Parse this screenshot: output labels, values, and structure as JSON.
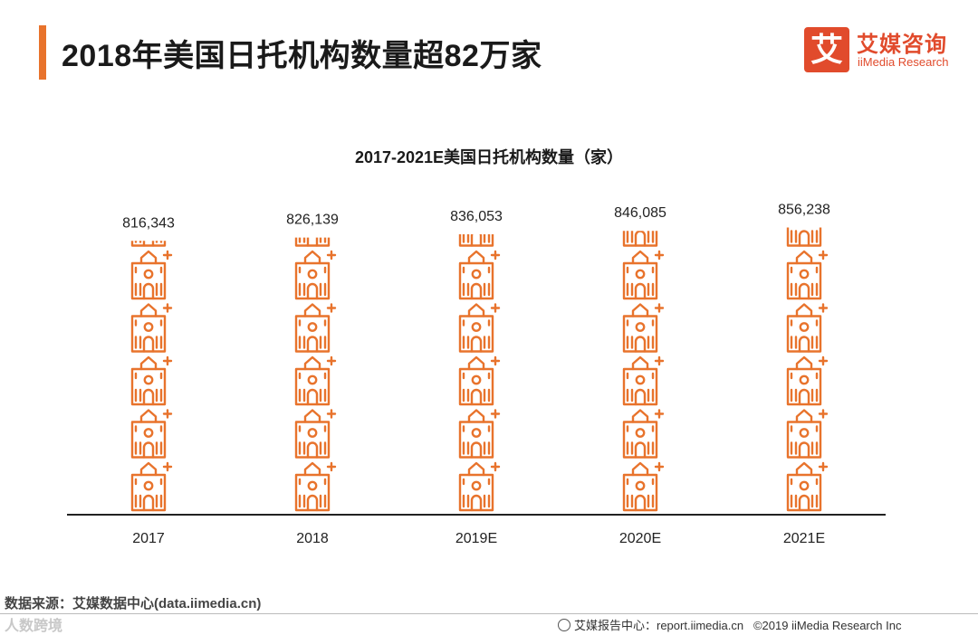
{
  "page": {
    "title": "2018年美国日托机构数量超82万家",
    "accent_color": "#e8732c"
  },
  "logo": {
    "mark": "艾",
    "cn": "艾媒咨询",
    "en": "iiMedia Research",
    "color": "#e14b2c"
  },
  "chart_data": {
    "type": "bar",
    "title": "2017-2021E美国日托机构数量（家）",
    "categories": [
      "2017",
      "2018",
      "2019E",
      "2020E",
      "2021E"
    ],
    "values": [
      816343,
      826139,
      836053,
      846085,
      856238
    ],
    "value_labels": [
      "816,343",
      "826,139",
      "836,053",
      "846,085",
      "856,238"
    ],
    "ylabel": "",
    "xlabel": "",
    "bar_style": "pictograph",
    "icon": "daycare-building-icon",
    "icon_color": "#e8732c",
    "grid": false,
    "legend": "none"
  },
  "footer": {
    "source": "数据来源：艾媒数据中心(data.iimedia.cn)",
    "watermark": "人数跨境",
    "report_center": "艾媒报告中心：report.iimedia.cn",
    "copyright": "©2019  iiMedia Research  Inc"
  }
}
